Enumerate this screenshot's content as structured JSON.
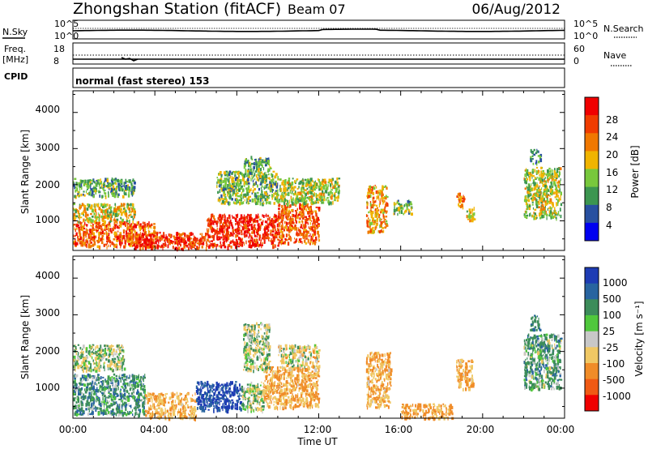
{
  "header": {
    "station": "Zhongshan Station (fitACF)",
    "beam": "Beam 07",
    "date": "06/Aug/2012"
  },
  "strips": {
    "nsky_label": "N.Sky",
    "nsky_ticks": [
      "10^5",
      "10^0"
    ],
    "nsearch_label": "N.Search",
    "freq_label_top": "Freq.",
    "freq_label_unit": "[MHz]",
    "freq_ticks": [
      "18",
      "8"
    ],
    "nave_ticks": [
      "60",
      "0"
    ],
    "nave_label": "Nave",
    "cpid_label": "CPID",
    "cpid_text": "normal (fast stereo) 153"
  },
  "axes": {
    "y_label": "Slant Range [km]",
    "y_ticks": [
      "4000",
      "3000",
      "2000",
      "1000"
    ],
    "x_label": "Time UT",
    "x_ticks": [
      "00:00",
      "04:00",
      "08:00",
      "12:00",
      "16:00",
      "20:00",
      "00:00"
    ]
  },
  "colorbars": {
    "power_label": "Power [dB]",
    "power_ticks": [
      "28",
      "24",
      "20",
      "16",
      "12",
      "8",
      "4"
    ],
    "power_colors": [
      "#f00000",
      "#f03c00",
      "#f07800",
      "#f0b400",
      "#78c83c",
      "#3c9650",
      "#2850a0",
      "#0000f0"
    ],
    "velocity_label": "Velocity [m s⁻¹]",
    "velocity_ticks": [
      "1000",
      "500",
      "100",
      "25",
      "-25",
      "-100",
      "-500",
      "-1000"
    ],
    "velocity_colors": [
      "#1e3cb4",
      "#2864a0",
      "#3c8c5a",
      "#50c83c",
      "#c8c8c8",
      "#f0c864",
      "#f08c28",
      "#f05a14",
      "#f00000"
    ]
  },
  "chart_data": [
    {
      "type": "heatmap",
      "title": "Power",
      "xlabel": "Time UT",
      "ylabel": "Slant Range [km]",
      "x_range_hours": [
        0,
        24
      ],
      "ylim": [
        180,
        4600
      ],
      "scale_label": "Power [dB]",
      "scale_range": [
        0,
        30
      ],
      "regions": [
        {
          "t": [
            0.0,
            4.0
          ],
          "range": [
            300,
            1000
          ],
          "value": 24
        },
        {
          "t": [
            0.0,
            3.0
          ],
          "range": [
            1000,
            1500
          ],
          "value": 16
        },
        {
          "t": [
            0.0,
            3.0
          ],
          "range": [
            1700,
            2200
          ],
          "value": 10
        },
        {
          "t": [
            3.0,
            6.5
          ],
          "range": [
            250,
            700
          ],
          "value": 27
        },
        {
          "t": [
            6.5,
            10.0
          ],
          "range": [
            300,
            1200
          ],
          "value": 28
        },
        {
          "t": [
            7.0,
            10.0
          ],
          "range": [
            1500,
            2400
          ],
          "value": 12
        },
        {
          "t": [
            8.3,
            9.6
          ],
          "range": [
            2400,
            2800
          ],
          "value": 10
        },
        {
          "t": [
            10.0,
            12.0
          ],
          "range": [
            400,
            1500
          ],
          "value": 24
        },
        {
          "t": [
            10.0,
            13.0
          ],
          "range": [
            1500,
            2200
          ],
          "value": 14
        },
        {
          "t": [
            14.3,
            15.3
          ],
          "range": [
            700,
            2000
          ],
          "value": 20
        },
        {
          "t": [
            15.6,
            16.5
          ],
          "range": [
            1200,
            1600
          ],
          "value": 12
        },
        {
          "t": [
            18.7,
            19.1
          ],
          "range": [
            1400,
            1800
          ],
          "value": 22
        },
        {
          "t": [
            19.2,
            19.6
          ],
          "range": [
            1000,
            1400
          ],
          "value": 16
        },
        {
          "t": [
            22.0,
            23.8
          ],
          "range": [
            1100,
            2500
          ],
          "value": 14
        },
        {
          "t": [
            22.3,
            22.8
          ],
          "range": [
            2600,
            3000
          ],
          "value": 8
        }
      ]
    },
    {
      "type": "heatmap",
      "title": "Velocity",
      "xlabel": "Time UT",
      "ylabel": "Slant Range [km]",
      "x_range_hours": [
        0,
        24
      ],
      "ylim": [
        180,
        4600
      ],
      "scale_label": "Velocity [m s⁻¹]",
      "scale_range": [
        -1000,
        1000
      ],
      "regions": [
        {
          "t": [
            0.0,
            3.5
          ],
          "range": [
            300,
            1400
          ],
          "value": 200
        },
        {
          "t": [
            0.0,
            2.5
          ],
          "range": [
            1500,
            2200
          ],
          "value": 0
        },
        {
          "t": [
            3.5,
            6.0
          ],
          "range": [
            200,
            900
          ],
          "value": -300
        },
        {
          "t": [
            6.0,
            8.2
          ],
          "range": [
            400,
            1200
          ],
          "value": 800
        },
        {
          "t": [
            8.2,
            9.3
          ],
          "range": [
            400,
            1200
          ],
          "value": 0
        },
        {
          "t": [
            9.3,
            12.0
          ],
          "range": [
            500,
            1600
          ],
          "value": -300
        },
        {
          "t": [
            8.3,
            9.6
          ],
          "range": [
            1500,
            2800
          ],
          "value": 0
        },
        {
          "t": [
            10.0,
            12.0
          ],
          "range": [
            1600,
            2200
          ],
          "value": -100
        },
        {
          "t": [
            14.3,
            15.5
          ],
          "range": [
            500,
            2000
          ],
          "value": -300
        },
        {
          "t": [
            16.0,
            18.5
          ],
          "range": [
            200,
            600
          ],
          "value": -400
        },
        {
          "t": [
            18.7,
            19.5
          ],
          "range": [
            1000,
            1800
          ],
          "value": -300
        },
        {
          "t": [
            22.0,
            23.8
          ],
          "range": [
            1000,
            2500
          ],
          "value": 150
        },
        {
          "t": [
            22.3,
            22.8
          ],
          "range": [
            2600,
            3000
          ],
          "value": 300
        }
      ]
    }
  ]
}
